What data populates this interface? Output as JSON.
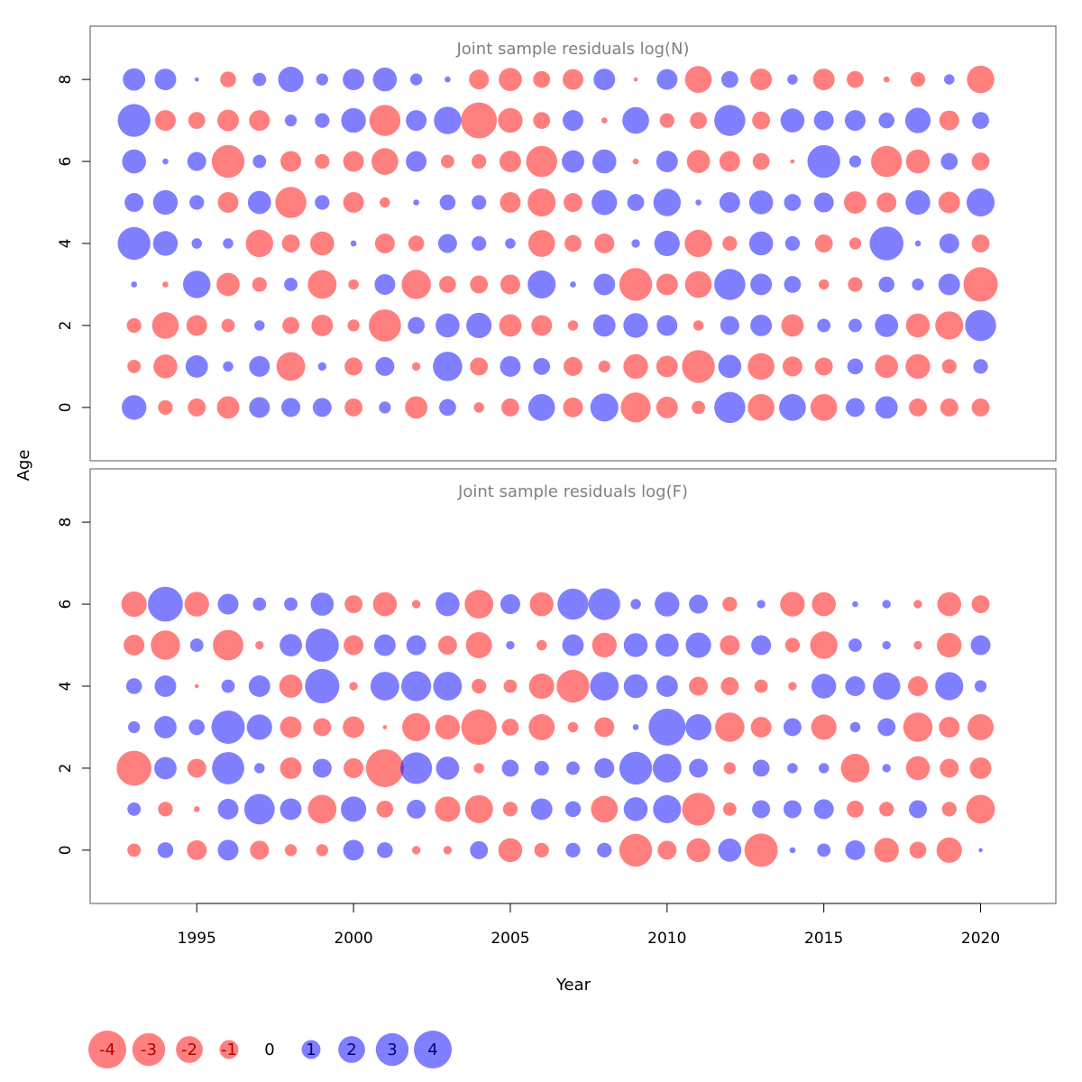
{
  "colors": {
    "negative": "#FF0000",
    "positive": "#0000FF",
    "label_negative": "#b00000",
    "label_positive": "#00007a",
    "title": "#808080"
  },
  "chart_data": {
    "type": "scatter",
    "x_label": "Year",
    "y_label": "Age",
    "x_range": [
      1991.6,
      1992.4,
      2022.4
    ],
    "x_ticks": [
      "1995",
      "2000",
      "2005",
      "2010",
      "2015",
      "2020"
    ],
    "years": [
      1993,
      1994,
      1995,
      1996,
      1997,
      1998,
      1999,
      2000,
      2001,
      2002,
      2003,
      2004,
      2005,
      2006,
      2007,
      2008,
      2009,
      2010,
      2011,
      2012,
      2013,
      2014,
      2015,
      2016,
      2017,
      2018,
      2019,
      2020
    ],
    "y_range": [
      -1.3,
      9.3
    ],
    "y_ticks": [
      "0",
      "2",
      "4",
      "6",
      "8"
    ],
    "legend": [
      "-4",
      "-3",
      "-2",
      "-1",
      "0",
      "1",
      "2",
      "3",
      "4"
    ],
    "legend_values": [
      -4,
      -3,
      -2,
      -1,
      0,
      1,
      2,
      3,
      4
    ],
    "panels": [
      {
        "title": "Joint sample residuals log(N)",
        "ages": [
          0,
          1,
          2,
          3,
          4,
          5,
          6,
          7,
          8
        ],
        "residuals": [
          [
            1.7,
            -0.6,
            -0.9,
            -1.4,
            1.2,
            1.0,
            1.0,
            -0.9,
            0.4,
            -1.4,
            0.8,
            -0.3,
            -0.9,
            2.0,
            -1.1,
            2.2,
            -2.5,
            -1.3,
            -0.5,
            2.7,
            -2.0,
            2.0,
            -2.0,
            1.0,
            1.4,
            -0.9,
            -0.9,
            -0.9
          ],
          [
            -0.5,
            -1.6,
            1.4,
            0.3,
            1.2,
            -2.3,
            0.2,
            -0.9,
            1.0,
            -0.2,
            2.4,
            -0.9,
            1.2,
            0.8,
            -1.0,
            -0.4,
            -1.7,
            -1.3,
            -3.0,
            1.5,
            -2.0,
            -1.1,
            -0.9,
            0.7,
            -1.5,
            -1.7,
            -0.6,
            0.6
          ],
          [
            -0.6,
            -2.0,
            -1.2,
            -0.5,
            0.3,
            -0.8,
            -1.3,
            -0.4,
            -2.9,
            0.8,
            1.6,
            1.8,
            -1.4,
            -1.2,
            -0.3,
            1.4,
            1.7,
            1.2,
            -0.3,
            1.0,
            1.3,
            -1.4,
            0.5,
            0.5,
            1.5,
            -1.6,
            -2.2,
            2.7
          ],
          [
            0.1,
            -0.1,
            2.1,
            -1.5,
            -0.6,
            0.5,
            -2.3,
            -0.3,
            1.2,
            -2.4,
            -0.8,
            -0.9,
            -1.1,
            2.2,
            0.1,
            1.3,
            -3.0,
            -1.3,
            -2.0,
            2.7,
            1.3,
            0.8,
            -0.3,
            -0.6,
            0.7,
            0.4,
            1.3,
            -3.3
          ],
          [
            3.0,
            1.7,
            0.3,
            0.3,
            -2.1,
            -0.9,
            -1.6,
            0.1,
            -1.1,
            -0.7,
            1.0,
            0.6,
            0.3,
            -2.0,
            -0.8,
            -1.1,
            0.2,
            1.8,
            -2.1,
            -0.6,
            1.6,
            0.6,
            -0.9,
            -0.4,
            3.2,
            0.1,
            1.1,
            -0.9
          ],
          [
            1.0,
            1.7,
            0.6,
            -1.2,
            1.5,
            -2.7,
            0.6,
            -1.2,
            -0.3,
            0.1,
            0.7,
            0.6,
            -1.2,
            -2.2,
            -1.0,
            1.8,
            0.8,
            2.1,
            0.1,
            1.2,
            1.6,
            0.8,
            1.1,
            -1.4,
            -1.1,
            1.7,
            -1.3,
            2.2
          ],
          [
            1.6,
            0.1,
            1.0,
            -3.0,
            0.5,
            -1.2,
            -0.6,
            -1.2,
            -2.0,
            1.2,
            -0.5,
            -0.6,
            -1.3,
            -2.7,
            1.4,
            1.6,
            -0.1,
            1.3,
            -1.5,
            -1.2,
            -0.8,
            -0.05,
            3.0,
            0.4,
            -2.7,
            -1.6,
            0.8,
            -0.9
          ],
          [
            3.0,
            -1.2,
            -0.8,
            -1.3,
            -1.2,
            0.4,
            0.6,
            1.7,
            -2.7,
            1.2,
            2.1,
            -3.6,
            -1.7,
            -0.8,
            1.2,
            -0.1,
            2.0,
            -0.6,
            -0.8,
            2.7,
            -0.9,
            1.6,
            1.1,
            1.2,
            0.7,
            1.8,
            -1.1,
            0.8
          ],
          [
            1.4,
            1.3,
            0.05,
            -0.7,
            0.5,
            1.8,
            0.4,
            1.3,
            1.6,
            0.4,
            0.1,
            -1.1,
            -1.5,
            -0.8,
            -1.2,
            1.3,
            -0.05,
            1.2,
            -2.0,
            0.8,
            -1.3,
            0.3,
            -1.3,
            -0.8,
            -0.1,
            -0.6,
            0.3,
            -2.1
          ]
        ]
      },
      {
        "title": "Joint sample residuals log(F)",
        "ages": [
          0,
          1,
          2,
          3,
          4,
          5,
          6
        ],
        "residuals": [
          [
            -0.5,
            0.7,
            -1.1,
            1.2,
            -1.0,
            -0.4,
            -0.4,
            1.2,
            0.7,
            -0.2,
            -0.2,
            0.9,
            -1.6,
            -0.6,
            0.6,
            0.6,
            -3.0,
            -1.0,
            -1.6,
            1.5,
            -3.1,
            0.1,
            0.5,
            1.1,
            -1.7,
            -0.8,
            -1.8,
            0.05
          ],
          [
            0.5,
            -0.6,
            -0.1,
            1.2,
            2.6,
            1.3,
            -2.3,
            1.8,
            -0.8,
            1.0,
            -1.8,
            -2.2,
            -0.6,
            1.3,
            0.7,
            -2.0,
            1.6,
            2.2,
            -3.0,
            -0.5,
            0.9,
            0.9,
            1.1,
            -0.8,
            -0.6,
            0.9,
            -0.6,
            -2.3
          ],
          [
            -3.4,
            1.4,
            -1.0,
            2.9,
            0.3,
            -1.3,
            1.0,
            -1.1,
            -4.0,
            2.8,
            1.5,
            -0.3,
            0.8,
            0.6,
            0.5,
            1.1,
            3.0,
            2.3,
            1.0,
            -0.4,
            0.8,
            0.3,
            0.3,
            -2.3,
            0.2,
            -1.6,
            -1.0,
            -1.3
          ],
          [
            0.4,
            1.4,
            0.7,
            3.1,
            1.8,
            -1.3,
            -0.9,
            -1.3,
            -0.05,
            -2.2,
            -1.7,
            -3.5,
            -0.8,
            -1.9,
            -0.3,
            -1.1,
            0.1,
            3.8,
            1.9,
            -2.4,
            -1.2,
            0.9,
            -1.8,
            0.3,
            0.9,
            -2.4,
            -1.2,
            -1.9
          ],
          [
            0.7,
            1.3,
            -0.05,
            0.5,
            1.3,
            -1.5,
            3.3,
            -0.2,
            2.3,
            2.5,
            2.3,
            -0.6,
            -0.5,
            -1.8,
            -3.0,
            2.3,
            1.6,
            1.3,
            -1.0,
            -0.9,
            -0.5,
            -0.2,
            1.7,
            1.1,
            2.1,
            -1.1,
            2.2,
            0.4
          ],
          [
            -1.2,
            -2.4,
            0.5,
            -2.6,
            -0.2,
            1.4,
            3.1,
            -1.1,
            1.3,
            1.1,
            -1.0,
            -1.9,
            0.2,
            -0.3,
            1.3,
            -1.7,
            1.6,
            1.5,
            1.8,
            -1.1,
            1.1,
            -0.6,
            -2.1,
            0.5,
            0.2,
            -0.2,
            -1.7,
            1.1
          ],
          [
            -1.8,
            3.4,
            -1.7,
            1.2,
            0.5,
            0.5,
            1.5,
            -0.9,
            -1.6,
            -0.2,
            1.6,
            -2.3,
            1.1,
            -1.6,
            2.7,
            2.8,
            0.3,
            1.7,
            1.0,
            -0.6,
            0.2,
            -1.7,
            -1.6,
            0.1,
            0.2,
            -0.2,
            -1.6,
            -0.9
          ]
        ]
      }
    ]
  }
}
